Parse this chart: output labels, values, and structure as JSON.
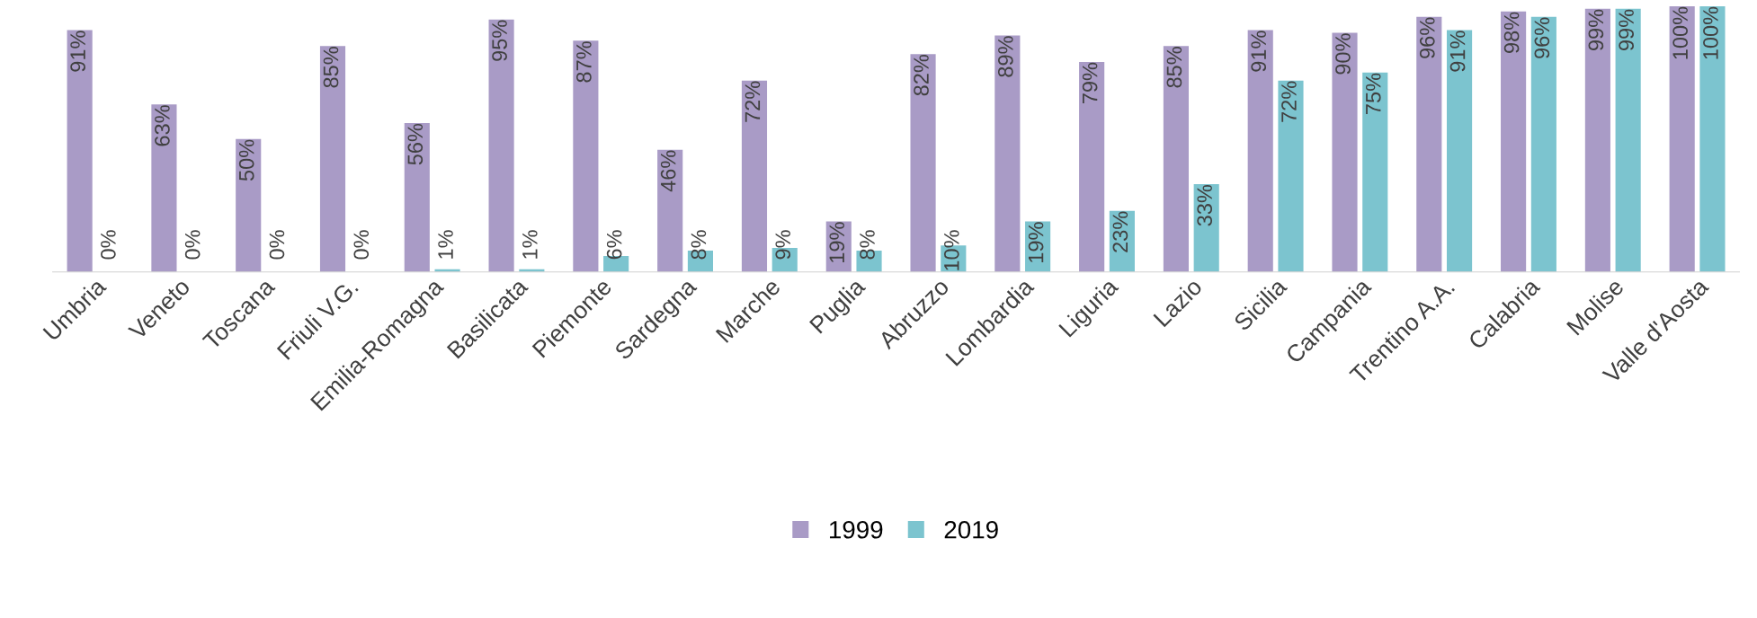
{
  "chart_data": {
    "type": "bar",
    "categories": [
      "Umbria",
      "Veneto",
      "Toscana",
      "Friuli V.G.",
      "Emilia-Romagna",
      "Basilicata",
      "Piemonte",
      "Sardegna",
      "Marche",
      "Puglia",
      "Abruzzo",
      "Lombardia",
      "Liguria",
      "Lazio",
      "Sicilia",
      "Campania",
      "Trentino A.A.",
      "Calabria",
      "Molise",
      "Valle d'Aosta"
    ],
    "series": [
      {
        "name": "1999",
        "color": "#a99bc6",
        "values": [
          91,
          63,
          50,
          85,
          56,
          95,
          87,
          46,
          72,
          19,
          82,
          89,
          79,
          85,
          91,
          90,
          96,
          98,
          99,
          100
        ],
        "value_labels": [
          "91%",
          "63%",
          "50%",
          "85%",
          "56%",
          "95%",
          "87%",
          "46%",
          "72%",
          "19%",
          "82%",
          "89%",
          "79%",
          "85%",
          "91%",
          "90%",
          "96%",
          "98%",
          "99%",
          "100%"
        ]
      },
      {
        "name": "2019",
        "color": "#7cc4cf",
        "values": [
          0,
          0,
          0,
          0,
          1,
          1,
          6,
          8,
          9,
          8,
          10,
          19,
          23,
          33,
          72,
          75,
          91,
          96,
          99,
          100
        ],
        "value_labels": [
          "0%",
          "0%",
          "0%",
          "0%",
          "1%",
          "1%",
          "6%",
          "8%",
          "9%",
          "8%",
          "10%",
          "19%",
          "23%",
          "33%",
          "72%",
          "75%",
          "91%",
          "96%",
          "99%",
          "100%"
        ]
      }
    ],
    "tick_labels": "x",
    "grid": false,
    "legend": "bottom"
  }
}
